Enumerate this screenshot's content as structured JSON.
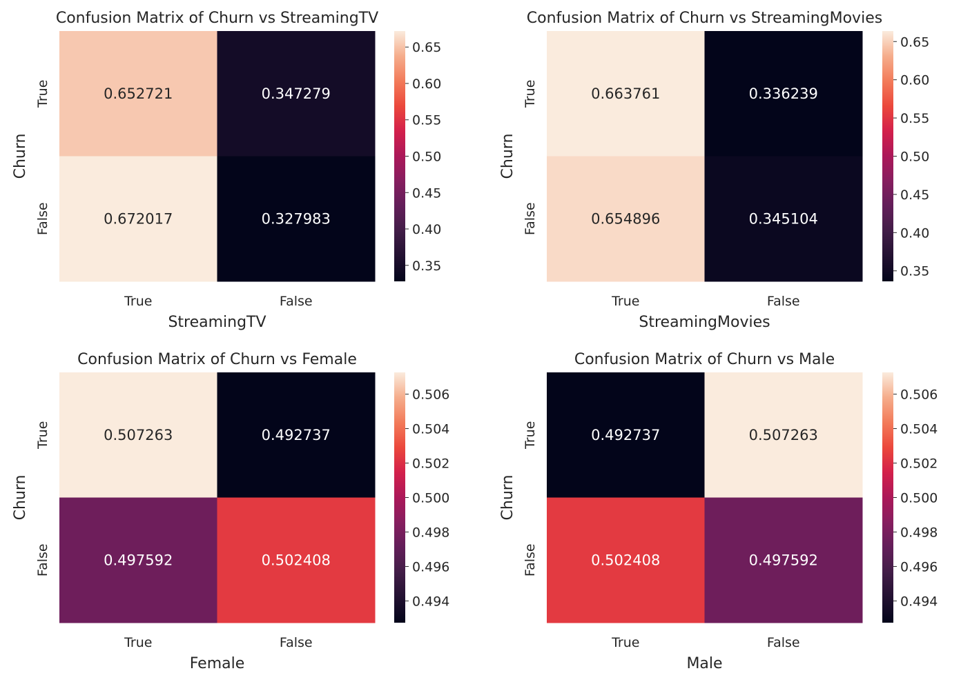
{
  "chart_data": [
    {
      "type": "heatmap",
      "title": "Confusion Matrix of Churn vs StreamingTV",
      "xlabel": "StreamingTV",
      "ylabel": "Churn",
      "x_categories": [
        "True",
        "False"
      ],
      "y_categories": [
        "True",
        "False"
      ],
      "values": [
        [
          0.652721,
          0.347279
        ],
        [
          0.672017,
          0.327983
        ]
      ],
      "cell_labels": [
        [
          "0.652721",
          "0.347279"
        ],
        [
          "0.672017",
          "0.327983"
        ]
      ],
      "colorbar": {
        "range": [
          0.327983,
          0.672017
        ],
        "ticks": [
          "0.35",
          "0.40",
          "0.45",
          "0.50",
          "0.55",
          "0.60",
          "0.65"
        ],
        "tick_values": [
          0.35,
          0.4,
          0.45,
          0.5,
          0.55,
          0.6,
          0.65
        ]
      },
      "colormap": "rocket"
    },
    {
      "type": "heatmap",
      "title": "Confusion Matrix of Churn vs StreamingMovies",
      "xlabel": "StreamingMovies",
      "ylabel": "Churn",
      "x_categories": [
        "True",
        "False"
      ],
      "y_categories": [
        "True",
        "False"
      ],
      "values": [
        [
          0.663761,
          0.336239
        ],
        [
          0.654896,
          0.345104
        ]
      ],
      "cell_labels": [
        [
          "0.663761",
          "0.336239"
        ],
        [
          "0.654896",
          "0.345104"
        ]
      ],
      "colorbar": {
        "range": [
          0.336239,
          0.663761
        ],
        "ticks": [
          "0.35",
          "0.40",
          "0.45",
          "0.50",
          "0.55",
          "0.60",
          "0.65"
        ],
        "tick_values": [
          0.35,
          0.4,
          0.45,
          0.5,
          0.55,
          0.6,
          0.65
        ]
      },
      "colormap": "rocket"
    },
    {
      "type": "heatmap",
      "title": "Confusion Matrix of Churn vs Female",
      "xlabel": "Female",
      "ylabel": "Churn",
      "x_categories": [
        "True",
        "False"
      ],
      "y_categories": [
        "True",
        "False"
      ],
      "values": [
        [
          0.507263,
          0.492737
        ],
        [
          0.497592,
          0.502408
        ]
      ],
      "cell_labels": [
        [
          "0.507263",
          "0.492737"
        ],
        [
          "0.497592",
          "0.502408"
        ]
      ],
      "colorbar": {
        "range": [
          0.492737,
          0.507263
        ],
        "ticks": [
          "0.494",
          "0.496",
          "0.498",
          "0.500",
          "0.502",
          "0.504",
          "0.506"
        ],
        "tick_values": [
          0.494,
          0.496,
          0.498,
          0.5,
          0.502,
          0.504,
          0.506
        ]
      },
      "colormap": "rocket"
    },
    {
      "type": "heatmap",
      "title": "Confusion Matrix of Churn vs Male",
      "xlabel": "Male",
      "ylabel": "Churn",
      "x_categories": [
        "True",
        "False"
      ],
      "y_categories": [
        "True",
        "False"
      ],
      "values": [
        [
          0.492737,
          0.507263
        ],
        [
          0.502408,
          0.497592
        ]
      ],
      "cell_labels": [
        [
          "0.492737",
          "0.507263"
        ],
        [
          "0.502408",
          "0.497592"
        ]
      ],
      "colorbar": {
        "range": [
          0.492737,
          0.507263
        ],
        "ticks": [
          "0.494",
          "0.496",
          "0.498",
          "0.500",
          "0.502",
          "0.504",
          "0.506"
        ],
        "tick_values": [
          0.494,
          0.496,
          0.498,
          0.5,
          0.502,
          0.504,
          0.506
        ]
      },
      "colormap": "rocket"
    }
  ]
}
